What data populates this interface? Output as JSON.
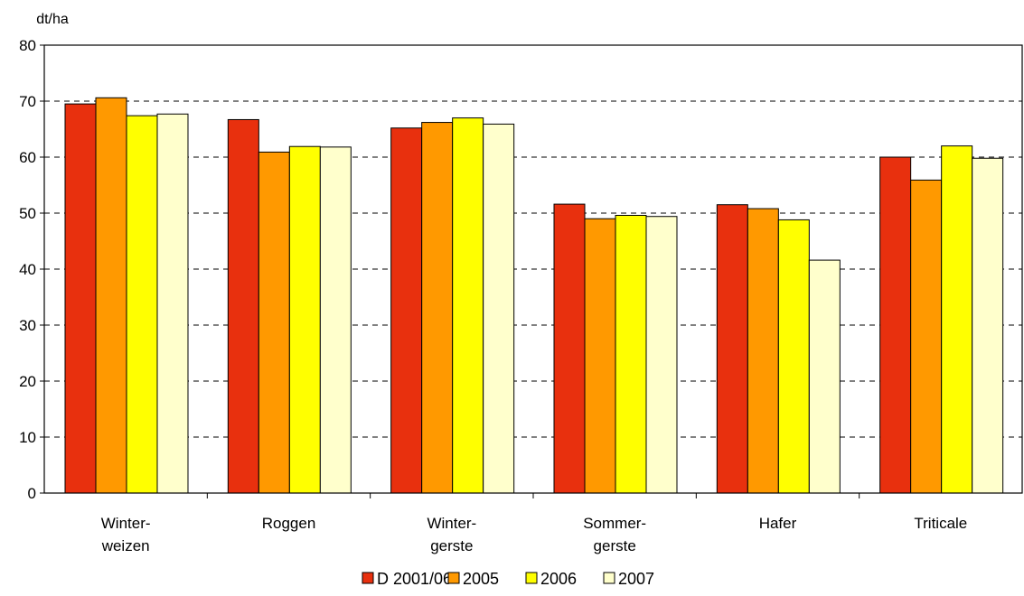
{
  "chart_data": {
    "type": "bar",
    "ylabel": "dt/ha",
    "ylim": [
      0,
      80
    ],
    "yticks": [
      "0",
      "10",
      "20",
      "30",
      "40",
      "50",
      "60",
      "70",
      "80"
    ],
    "grid": "horizontal dashed",
    "legend_position": "bottom",
    "categories": [
      [
        "Winter-",
        "weizen"
      ],
      [
        "Roggen"
      ],
      [
        "Winter-",
        "gerste"
      ],
      [
        "Sommer-",
        "gerste"
      ],
      [
        "Hafer"
      ],
      [
        "Triticale"
      ]
    ],
    "series": [
      {
        "name": "D 2001/06",
        "color": "#E8300E",
        "values": [
          69.5,
          66.7,
          65.2,
          51.6,
          51.5,
          60.0
        ]
      },
      {
        "name": "2005",
        "color": "#FF9900",
        "values": [
          70.6,
          60.9,
          66.2,
          49.0,
          50.8,
          55.9
        ]
      },
      {
        "name": "2006",
        "color": "#FFFF00",
        "values": [
          67.4,
          61.9,
          67.0,
          49.6,
          48.8,
          62.0
        ]
      },
      {
        "name": "2007",
        "color": "#FFFFCC",
        "values": [
          67.7,
          61.8,
          65.9,
          49.4,
          41.6,
          59.8
        ]
      }
    ]
  }
}
